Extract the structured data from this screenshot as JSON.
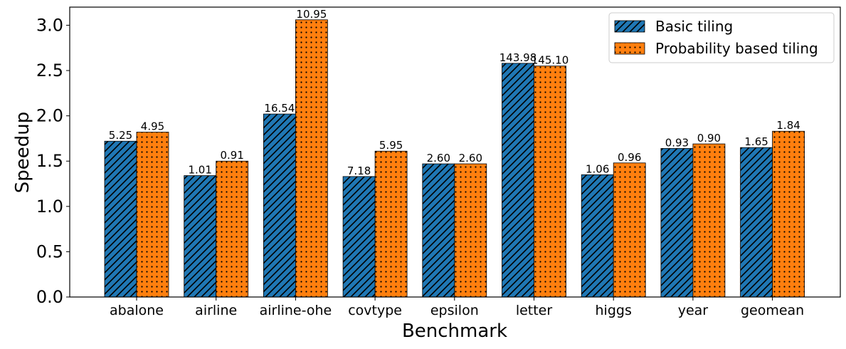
{
  "chart_data": {
    "type": "bar",
    "title": "",
    "xlabel": "Benchmark",
    "ylabel": "Speedup",
    "ylim": [
      0,
      3.2
    ],
    "yticks": [
      0.0,
      0.5,
      1.0,
      1.5,
      2.0,
      2.5,
      3.0
    ],
    "ytick_labels": [
      "0.0",
      "0.5",
      "1.0",
      "1.5",
      "2.0",
      "2.5",
      "3.0"
    ],
    "grid": false,
    "legend_position": "top-right",
    "categories": [
      "abalone",
      "airline",
      "airline-ohe",
      "covtype",
      "epsilon",
      "letter",
      "higgs",
      "year",
      "geomean"
    ],
    "series": [
      {
        "name": "Basic tiling",
        "color": "#1f77b4",
        "hatch": "diagonal",
        "values": [
          1.72,
          1.34,
          2.02,
          1.33,
          1.47,
          2.58,
          1.35,
          1.64,
          1.65
        ],
        "labels": [
          "5.25",
          "1.01",
          "16.54",
          "7.18",
          "2.60",
          "143.98",
          "1.06",
          "0.93",
          "1.65"
        ]
      },
      {
        "name": "Probability based tiling",
        "color": "#ff7f0e",
        "hatch": "dots",
        "values": [
          1.82,
          1.5,
          3.06,
          1.61,
          1.47,
          2.55,
          1.48,
          1.69,
          1.83
        ],
        "labels": [
          "4.95",
          "0.91",
          "10.95",
          "5.95",
          "2.60",
          "145.10",
          "0.96",
          "0.90",
          "1.84"
        ]
      }
    ]
  }
}
